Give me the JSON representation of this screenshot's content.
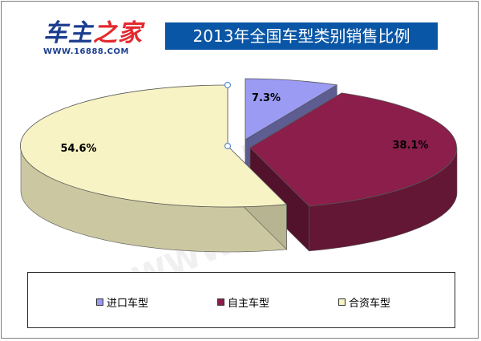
{
  "header": {
    "logo_text_part1": "车主",
    "logo_text_part2": "之家",
    "logo_url": "WWW.16888.COM",
    "title": "2013年全国车型类别销售比例"
  },
  "chart_data": {
    "type": "pie",
    "title": "2013年全国车型类别销售比例",
    "categories": [
      "进口车型",
      "自主车型",
      "合资车型"
    ],
    "values": [
      7.3,
      38.1,
      54.6
    ],
    "labels": [
      "7.3%",
      "38.1%",
      "54.6%"
    ],
    "colors": [
      "#9b9bf3",
      "#8b1e4a",
      "#f7f3c4"
    ],
    "legend_position": "bottom",
    "exploded": true,
    "three_d": true
  },
  "watermark": {
    "text": "车主之家",
    "url": "WWW.16888.COM"
  }
}
